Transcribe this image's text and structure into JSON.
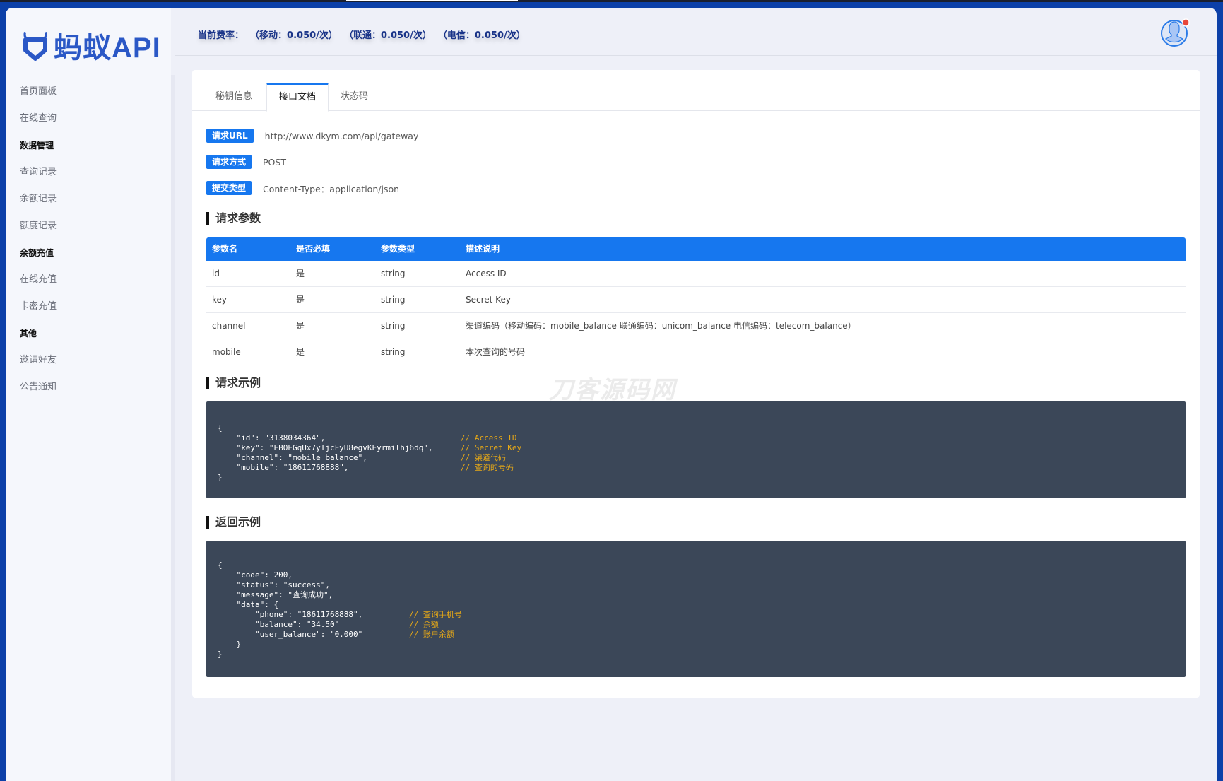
{
  "brand": {
    "name": "蚂蚁API",
    "color": "#2b58c6"
  },
  "sidebar": {
    "items": [
      {
        "type": "item",
        "label": "首页面板"
      },
      {
        "type": "item",
        "label": "在线查询"
      },
      {
        "type": "group",
        "label": "数据管理"
      },
      {
        "type": "item",
        "label": "查询记录"
      },
      {
        "type": "item",
        "label": "余额记录"
      },
      {
        "type": "item",
        "label": "额度记录"
      },
      {
        "type": "group",
        "label": "余额充值"
      },
      {
        "type": "item",
        "label": "在线充值"
      },
      {
        "type": "item",
        "label": "卡密充值"
      },
      {
        "type": "group",
        "label": "其他"
      },
      {
        "type": "item",
        "label": "邀请好友"
      },
      {
        "type": "item",
        "label": "公告通知"
      }
    ]
  },
  "header": {
    "rates": "当前费率：  （移动：0.050/次）  （联通：0.050/次）  （电信：0.050/次）",
    "avatar_icon": "user-avatar-icon",
    "notification_dot_color": "#e8473b"
  },
  "tabs": [
    {
      "label": "秘钥信息",
      "active": false
    },
    {
      "label": "接口文档",
      "active": true
    },
    {
      "label": "状态码",
      "active": false
    }
  ],
  "request_info": [
    {
      "label": "请求URL",
      "value": "http://www.dkym.com/api/gateway"
    },
    {
      "label": "请求方式",
      "value": "POST"
    },
    {
      "label": "提交类型",
      "value": "Content-Type：application/json"
    }
  ],
  "params_title": "请求参数",
  "params_table": {
    "headers": [
      "参数名",
      "是否必填",
      "参数类型",
      "描述说明"
    ],
    "rows": [
      [
        "id",
        "是",
        "string",
        "Access ID"
      ],
      [
        "key",
        "是",
        "string",
        "Secret Key"
      ],
      [
        "channel",
        "是",
        "string",
        "渠道编码（移动编码：mobile_balance 联通编码：unicom_balance 电信编码：telecom_balance）"
      ],
      [
        "mobile",
        "是",
        "string",
        "本次查询的号码"
      ]
    ]
  },
  "request_example_title": "请求示例",
  "request_example": [
    [
      "{",
      ""
    ],
    [
      "    \"id\": \"3138034364\",",
      "// Access ID"
    ],
    [
      "    \"key\": \"EBOEGqUx7yIjcFyU8egvKEyrmilhj6dq\",",
      "// Secret Key"
    ],
    [
      "    \"channel\": \"mobile_balance\",",
      "// 渠道代码"
    ],
    [
      "    \"mobile\": \"18611768888\",",
      "// 查询的号码"
    ],
    [
      "}",
      ""
    ]
  ],
  "response_example_title": "返回示例",
  "response_example": [
    [
      "{",
      ""
    ],
    [
      "    \"code\": 200,",
      ""
    ],
    [
      "    \"status\": \"success\",",
      ""
    ],
    [
      "    \"message\": \"查询成功\",",
      ""
    ],
    [
      "    \"data\": {",
      ""
    ],
    [
      "        \"phone\": \"18611768888\",",
      "// 查询手机号"
    ],
    [
      "        \"balance\": \"34.50\"",
      "// 余额"
    ],
    [
      "        \"user_balance\": \"0.000\"",
      "// 账户余额"
    ],
    [
      "    }",
      ""
    ],
    [
      "}",
      ""
    ]
  ],
  "watermark": "刀客源码网",
  "colors": {
    "accent": "#1677ef",
    "frame": "#0c40a8",
    "code_bg": "#3b4758",
    "comment": "#e6a817"
  }
}
